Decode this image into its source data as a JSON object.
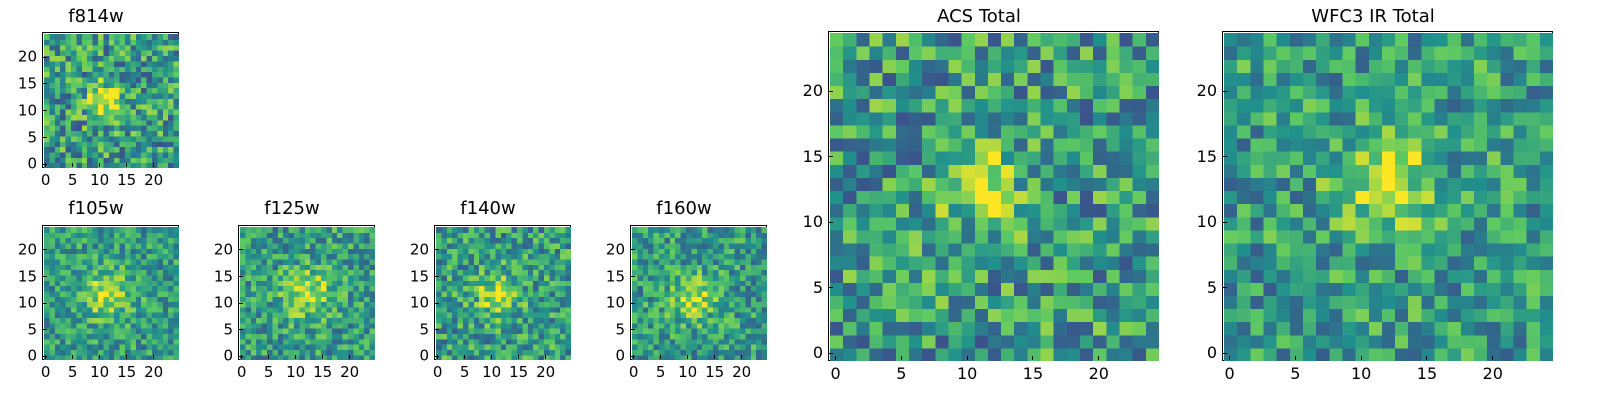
{
  "colormap": "viridis",
  "colors": {
    "low": "#440154",
    "mid": "#21918c",
    "high": "#fde725"
  },
  "panels": [
    {
      "id": "f814w",
      "title": "f814w",
      "x_ticks": [
        "0",
        "5",
        "10",
        "15",
        "20"
      ],
      "y_ticks": [
        "0",
        "5",
        "10",
        "15",
        "20"
      ],
      "grid_size": 25,
      "source": {
        "cx": 11,
        "cy": 12,
        "sigma": 2.4,
        "amp": 0.42,
        "noise": 0.3,
        "seed": 11
      }
    },
    {
      "id": "f105w",
      "title": "f105w",
      "x_ticks": [
        "0",
        "5",
        "10",
        "15",
        "20"
      ],
      "y_ticks": [
        "0",
        "5",
        "10",
        "15",
        "20"
      ],
      "grid_size": 25,
      "source": {
        "cx": 11,
        "cy": 12,
        "sigma": 3.2,
        "amp": 0.35,
        "noise": 0.22,
        "seed": 23
      }
    },
    {
      "id": "f125w",
      "title": "f125w",
      "x_ticks": [
        "0",
        "5",
        "10",
        "15",
        "20"
      ],
      "y_ticks": [
        "0",
        "5",
        "10",
        "15",
        "20"
      ],
      "grid_size": 25,
      "source": {
        "cx": 12,
        "cy": 12,
        "sigma": 3.4,
        "amp": 0.33,
        "noise": 0.24,
        "seed": 37
      }
    },
    {
      "id": "f140w",
      "title": "f140w",
      "x_ticks": [
        "0",
        "5",
        "10",
        "15",
        "20"
      ],
      "y_ticks": [
        "0",
        "5",
        "10",
        "15",
        "20"
      ],
      "grid_size": 25,
      "source": {
        "cx": 11,
        "cy": 12,
        "sigma": 2.8,
        "amp": 0.34,
        "noise": 0.26,
        "seed": 41
      }
    },
    {
      "id": "f160w",
      "title": "f160w",
      "x_ticks": [
        "0",
        "5",
        "10",
        "15",
        "20"
      ],
      "y_ticks": [
        "0",
        "5",
        "10",
        "15",
        "20"
      ],
      "grid_size": 25,
      "source": {
        "cx": 11,
        "cy": 11,
        "sigma": 3.0,
        "amp": 0.33,
        "noise": 0.24,
        "seed": 53
      }
    },
    {
      "id": "acs-total",
      "title": "ACS Total",
      "x_ticks": [
        "0",
        "5",
        "10",
        "15",
        "20"
      ],
      "y_ticks": [
        "0",
        "5",
        "10",
        "15",
        "20"
      ],
      "grid_size": 25,
      "source": {
        "cx": 11,
        "cy": 13,
        "sigma": 2.0,
        "amp": 0.45,
        "noise": 0.3,
        "seed": 67
      }
    },
    {
      "id": "wfc3-ir-total",
      "title": "WFC3 IR Total",
      "x_ticks": [
        "0",
        "5",
        "10",
        "15",
        "20"
      ],
      "y_ticks": [
        "0",
        "5",
        "10",
        "15",
        "20"
      ],
      "grid_size": 25,
      "source": {
        "cx": 12,
        "cy": 13,
        "sigma": 2.6,
        "amp": 0.4,
        "noise": 0.26,
        "seed": 79
      }
    }
  ]
}
